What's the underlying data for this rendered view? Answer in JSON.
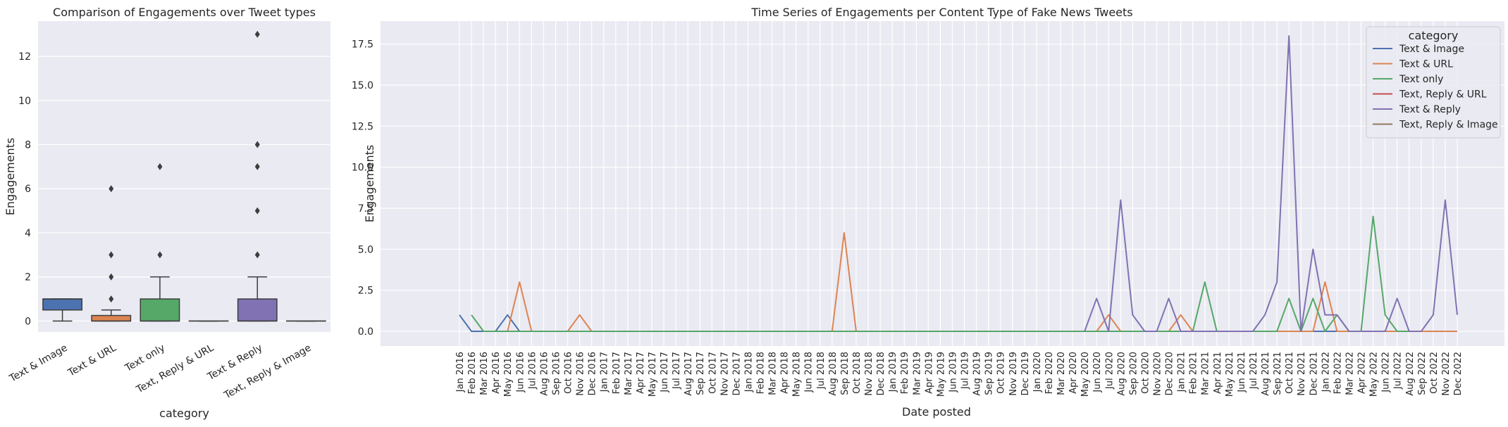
{
  "chart_data": [
    {
      "type": "box",
      "title": "Comparison of Engagements over Tweet types",
      "xlabel": "category",
      "ylabel": "Engagements",
      "ylim": [
        -0.5,
        13.6
      ],
      "yticks": [
        0,
        2,
        4,
        6,
        8,
        10,
        12
      ],
      "grid": true,
      "categories": [
        "Text & Image",
        "Text & URL",
        "Text only",
        "Text, Reply & URL",
        "Text & Reply",
        "Text, Reply & Image"
      ],
      "colors": [
        "#4c72b0",
        "#dd8452",
        "#55a868",
        "#c44e52",
        "#8172b3",
        "#937860"
      ],
      "boxes": [
        {
          "min": 0,
          "q1": 0.5,
          "median": 1,
          "q3": 1,
          "max": 1,
          "outliers": []
        },
        {
          "min": 0,
          "q1": 0,
          "median": 0,
          "q3": 0.25,
          "max": 0.5,
          "outliers": [
            1,
            2,
            3,
            6
          ]
        },
        {
          "min": 0,
          "q1": 0,
          "median": 0,
          "q3": 1,
          "max": 2,
          "outliers": [
            3,
            7
          ]
        },
        {
          "min": 0,
          "q1": 0,
          "median": 0,
          "q3": 0,
          "max": 0,
          "outliers": []
        },
        {
          "min": 0,
          "q1": 0,
          "median": 0,
          "q3": 1,
          "max": 2,
          "outliers": [
            3,
            5,
            7,
            8,
            13
          ]
        },
        {
          "min": 0,
          "q1": 0,
          "median": 0,
          "q3": 0,
          "max": 0,
          "outliers": []
        }
      ]
    },
    {
      "type": "line",
      "title": "Time Series of Engagements per Content Type of Fake News Tweets",
      "xlabel": "Date posted",
      "ylabel": "Engagements",
      "ylim": [
        -0.9,
        18.9
      ],
      "yticks": [
        "0.0",
        "2.5",
        "5.0",
        "7.5",
        "10.0",
        "12.5",
        "15.0",
        "17.5"
      ],
      "grid": true,
      "legend": {
        "title": "category",
        "placement": "top-right"
      },
      "x": [
        "Jan 2016",
        "Feb 2016",
        "Mar 2016",
        "Apr 2016",
        "May 2016",
        "Jun 2016",
        "Jul 2016",
        "Aug 2016",
        "Sep 2016",
        "Oct 2016",
        "Nov 2016",
        "Dec 2016",
        "Jan 2017",
        "Feb 2017",
        "Mar 2017",
        "Apr 2017",
        "May 2017",
        "Jun 2017",
        "Jul 2017",
        "Aug 2017",
        "Sep 2017",
        "Oct 2017",
        "Nov 2017",
        "Dec 2017",
        "Jan 2018",
        "Feb 2018",
        "Mar 2018",
        "Apr 2018",
        "May 2018",
        "Jun 2018",
        "Jul 2018",
        "Aug 2018",
        "Sep 2018",
        "Oct 2018",
        "Nov 2018",
        "Dec 2018",
        "Jan 2019",
        "Feb 2019",
        "Mar 2019",
        "Apr 2019",
        "May 2019",
        "Jun 2019",
        "Jul 2019",
        "Aug 2019",
        "Sep 2019",
        "Oct 2019",
        "Nov 2019",
        "Dec 2019",
        "Jan 2020",
        "Feb 2020",
        "Mar 2020",
        "Apr 2020",
        "May 2020",
        "Jun 2020",
        "Jul 2020",
        "Aug 2020",
        "Sep 2020",
        "Oct 2020",
        "Nov 2020",
        "Dec 2020",
        "Jan 2021",
        "Feb 2021",
        "Mar 2021",
        "Apr 2021",
        "May 2021",
        "Jun 2021",
        "Jul 2021",
        "Aug 2021",
        "Sep 2021",
        "Oct 2021",
        "Nov 2021",
        "Dec 2021",
        "Jan 2022",
        "Feb 2022",
        "Mar 2022",
        "Apr 2022",
        "May 2022",
        "Jun 2022",
        "Jul 2022",
        "Aug 2022",
        "Sep 2022",
        "Oct 2022",
        "Nov 2022",
        "Dec 2022"
      ],
      "series": [
        {
          "name": "Text & Image",
          "color": "#4c72b0",
          "points": [
            [
              0,
              1
            ],
            [
              1,
              0
            ],
            [
              2,
              0
            ],
            [
              3,
              0
            ],
            [
              4,
              1
            ],
            [
              5,
              0
            ],
            [
              6,
              0
            ],
            [
              73,
              0
            ]
          ]
        },
        {
          "name": "Text & URL",
          "color": "#dd8452",
          "points": [
            [
              4,
              0
            ],
            [
              5,
              3
            ],
            [
              6,
              0
            ],
            [
              9,
              0
            ],
            [
              10,
              1
            ],
            [
              11,
              0
            ],
            [
              31,
              0
            ],
            [
              32,
              6
            ],
            [
              33,
              0
            ],
            [
              53,
              0
            ],
            [
              54,
              1
            ],
            [
              55,
              0
            ],
            [
              59,
              0
            ],
            [
              60,
              1
            ],
            [
              61,
              0
            ],
            [
              71,
              0
            ],
            [
              72,
              3
            ],
            [
              73,
              0
            ],
            [
              83,
              0
            ]
          ]
        },
        {
          "name": "Text only",
          "color": "#55a868",
          "points": [
            [
              1,
              1
            ],
            [
              2,
              0
            ],
            [
              4,
              0
            ],
            [
              53,
              0
            ],
            [
              54,
              0
            ],
            [
              55,
              0
            ],
            [
              61,
              0
            ],
            [
              62,
              3
            ],
            [
              63,
              0
            ],
            [
              68,
              0
            ],
            [
              69,
              2
            ],
            [
              70,
              0
            ],
            [
              71,
              2
            ],
            [
              72,
              0
            ],
            [
              73,
              1
            ],
            [
              74,
              0
            ],
            [
              75,
              0
            ],
            [
              76,
              7
            ],
            [
              77,
              1
            ],
            [
              78,
              0
            ],
            [
              79,
              0
            ]
          ]
        },
        {
          "name": "Text, Reply & URL",
          "color": "#c44e52",
          "points": []
        },
        {
          "name": "Text & Reply",
          "color": "#8172b3",
          "points": [
            [
              52,
              0
            ],
            [
              53,
              2
            ],
            [
              54,
              0
            ],
            [
              55,
              8
            ],
            [
              56,
              1
            ],
            [
              57,
              0
            ],
            [
              58,
              0
            ],
            [
              59,
              2
            ],
            [
              60,
              0
            ],
            [
              66,
              0
            ],
            [
              67,
              1
            ],
            [
              68,
              3
            ],
            [
              69,
              18
            ],
            [
              70,
              0
            ],
            [
              71,
              5
            ],
            [
              72,
              1
            ],
            [
              73,
              1
            ],
            [
              74,
              0
            ],
            [
              77,
              0
            ],
            [
              78,
              2
            ],
            [
              79,
              0
            ],
            [
              80,
              0
            ],
            [
              81,
              1
            ],
            [
              82,
              8
            ],
            [
              83,
              1
            ]
          ]
        },
        {
          "name": "Text, Reply & Image",
          "color": "#937860",
          "points": []
        }
      ]
    }
  ]
}
